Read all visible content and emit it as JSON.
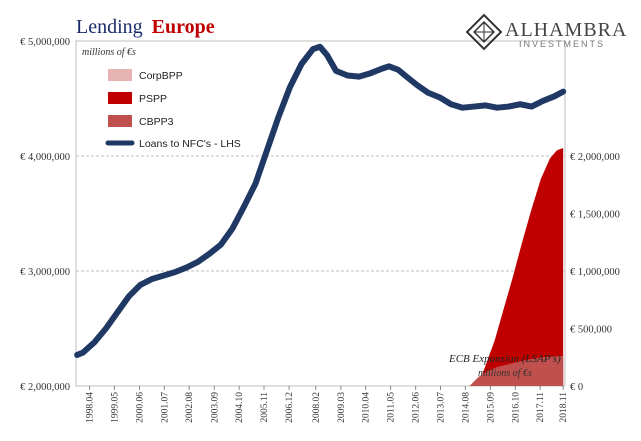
{
  "chart_data": {
    "type": "area",
    "title_part1": "Lending",
    "title_part2": "Europe",
    "left_unit": "millions of €s",
    "right_unit": "millions of €s",
    "annotation": "ECB Expansion (LSAP's)",
    "left_ylim": [
      2000000,
      5000000
    ],
    "right_ylim": [
      0,
      3000000
    ],
    "left_ticks": [
      "€ 2,000,000",
      "€ 3,000,000",
      "€ 4,000,000",
      "€ 5,000,000"
    ],
    "left_tick_values": [
      2000000,
      3000000,
      4000000,
      5000000
    ],
    "right_ticks": [
      "€ 0",
      "€ 500,000",
      "€ 1,000,000",
      "€ 1,500,000",
      "€ 2,000,000"
    ],
    "right_tick_values": [
      0,
      500000,
      1000000,
      1500000,
      2000000
    ],
    "x_range": [
      1997.7,
      2018.95
    ],
    "x_ticks": [
      "1998.04",
      "1999.05",
      "2000.06",
      "2001.07",
      "2002.08",
      "2003.09",
      "2004.10",
      "2005.11",
      "2006.12",
      "2008.02",
      "2009.03",
      "2010.04",
      "2011.05",
      "2012.06",
      "2013.07",
      "2014.08",
      "2015.09",
      "2016.10",
      "2017.11",
      "2018.11"
    ],
    "x_tick_values": [
      1998.29,
      1999.37,
      2000.46,
      2001.54,
      2002.62,
      2003.71,
      2004.79,
      2005.87,
      2006.96,
      2008.12,
      2009.21,
      2010.29,
      2011.37,
      2012.46,
      2013.54,
      2014.62,
      2015.71,
      2016.79,
      2017.87,
      2018.87
    ],
    "grid": true,
    "legend": "top-left",
    "series": [
      {
        "name": "CorpBPP",
        "axis": "right",
        "type": "area",
        "color": "#e6b3b3",
        "x": [
          2016.45,
          2016.8,
          2017.2,
          2017.6,
          2018.0,
          2018.4,
          2018.87
        ],
        "values": [
          0,
          20000,
          60000,
          100000,
          130000,
          160000,
          180000
        ]
      },
      {
        "name": "PSPP",
        "axis": "right",
        "type": "area",
        "color": "#c00000",
        "x": [
          2015.17,
          2015.5,
          2015.9,
          2016.3,
          2016.7,
          2017.1,
          2017.5,
          2017.9,
          2018.3,
          2018.6,
          2018.87
        ],
        "values": [
          0,
          180000,
          400000,
          680000,
          960000,
          1260000,
          1540000,
          1800000,
          1980000,
          2050000,
          2070000
        ]
      },
      {
        "name": "CBPP3",
        "axis": "right",
        "type": "area",
        "color": "#c0504d",
        "x": [
          2014.8,
          2015.2,
          2015.6,
          2016.0,
          2016.5,
          2017.0,
          2017.5,
          2018.0,
          2018.5,
          2018.87
        ],
        "values": [
          0,
          80000,
          130000,
          165000,
          190000,
          215000,
          235000,
          250000,
          258000,
          262000
        ]
      },
      {
        "name": "Loans to NFC's - LHS",
        "axis": "left",
        "type": "line",
        "color": "#1f3864",
        "x": [
          1997.75,
          1998.0,
          1998.5,
          1999.0,
          1999.5,
          2000.0,
          2000.5,
          2001.0,
          2001.5,
          2002.0,
          2002.5,
          2003.0,
          2003.5,
          2004.0,
          2004.5,
          2005.0,
          2005.5,
          2006.0,
          2006.5,
          2007.0,
          2007.5,
          2008.0,
          2008.3,
          2008.6,
          2009.0,
          2009.5,
          2010.0,
          2010.5,
          2011.0,
          2011.3,
          2011.7,
          2012.0,
          2012.5,
          2013.0,
          2013.5,
          2014.0,
          2014.5,
          2015.0,
          2015.5,
          2016.0,
          2016.5,
          2017.0,
          2017.5,
          2018.0,
          2018.5,
          2018.87
        ],
        "values": [
          2270000,
          2290000,
          2380000,
          2500000,
          2640000,
          2780000,
          2880000,
          2930000,
          2960000,
          2990000,
          3030000,
          3080000,
          3150000,
          3230000,
          3370000,
          3560000,
          3760000,
          4050000,
          4340000,
          4600000,
          4800000,
          4930000,
          4950000,
          4880000,
          4740000,
          4700000,
          4690000,
          4720000,
          4760000,
          4780000,
          4750000,
          4700000,
          4620000,
          4550000,
          4510000,
          4450000,
          4420000,
          4430000,
          4440000,
          4420000,
          4430000,
          4450000,
          4430000,
          4480000,
          4520000,
          4560000
        ]
      }
    ]
  },
  "logo": {
    "name": "ALHAMBRA",
    "sub": "INVESTMENTS",
    "color": "#444444"
  }
}
